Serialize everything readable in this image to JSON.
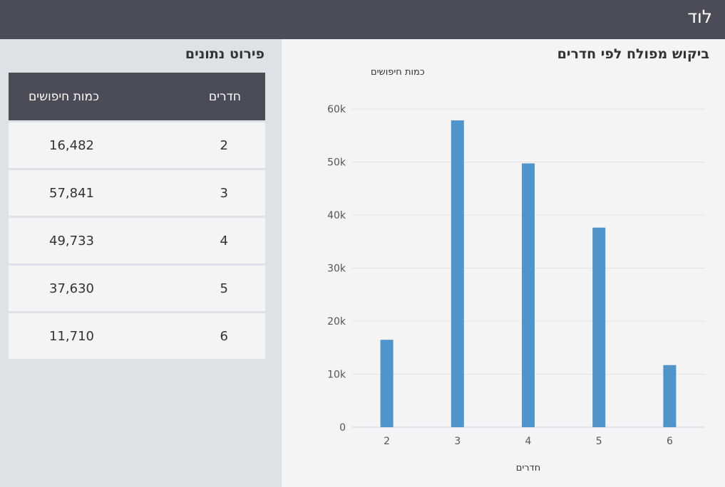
{
  "header": {
    "title": "לוד"
  },
  "table": {
    "title": "פירוט נתונים",
    "headers": {
      "rooms": "חדרים",
      "count": "כמות חיפושים"
    },
    "rows": [
      {
        "rooms": "2",
        "count": "16,482"
      },
      {
        "rooms": "3",
        "count": "57,841"
      },
      {
        "rooms": "4",
        "count": "49,733"
      },
      {
        "rooms": "5",
        "count": "37,630"
      },
      {
        "rooms": "6",
        "count": "11,710"
      }
    ]
  },
  "chart_data": {
    "type": "bar",
    "title": "ביקוש מפולח לפי חדרים",
    "ylabel": "כמות חיפושים",
    "xlabel": "חדרים",
    "categories": [
      "2",
      "3",
      "4",
      "5",
      "6"
    ],
    "values": [
      16482,
      57841,
      49733,
      37630,
      11710
    ],
    "ylim": [
      0,
      60000
    ],
    "yticks": [
      0,
      10000,
      20000,
      30000,
      40000,
      50000,
      60000
    ],
    "ytick_labels": [
      "0",
      "10k",
      "20k",
      "30k",
      "40k",
      "50k",
      "60k"
    ],
    "grid": true,
    "bar_color": "#4f95cc"
  }
}
